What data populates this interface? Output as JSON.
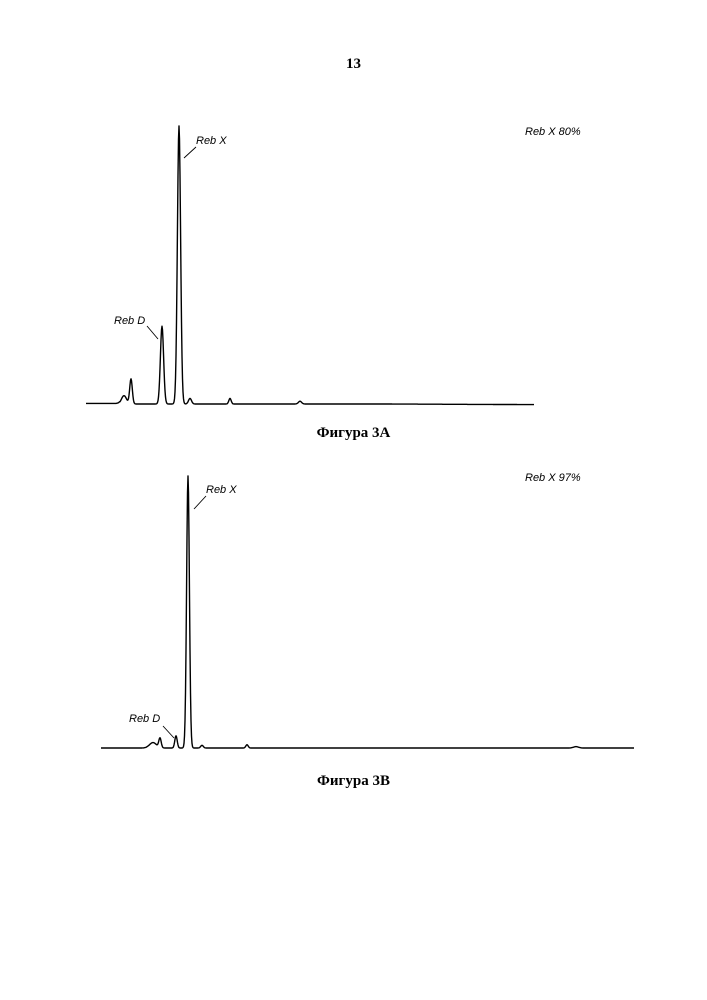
{
  "page_number": "13",
  "chart_data": [
    {
      "type": "line",
      "caption": "Фигура 3A",
      "purity_label": "Reb X 80%",
      "peaks": [
        {
          "label": "",
          "height": 0.09
        },
        {
          "label": "",
          "height": 0.03
        },
        {
          "label": "Reb D",
          "height": 0.28
        },
        {
          "label": "Reb X",
          "height": 1.0
        },
        {
          "label": "",
          "height": 0.02
        },
        {
          "label": "",
          "height": 0.02
        },
        {
          "label": "",
          "height": 0.01
        }
      ]
    },
    {
      "type": "line",
      "caption": "Фигура 3B",
      "purity_label": "Reb X 97%",
      "peaks": [
        {
          "label": "",
          "height": 0.02
        },
        {
          "label": "",
          "height": 0.035
        },
        {
          "label": "Reb D",
          "height": 0.045
        },
        {
          "label": "Reb X",
          "height": 1.0
        },
        {
          "label": "",
          "height": 0.01
        },
        {
          "label": "",
          "height": 0.012
        },
        {
          "label": "",
          "height": 0.005
        }
      ]
    }
  ]
}
